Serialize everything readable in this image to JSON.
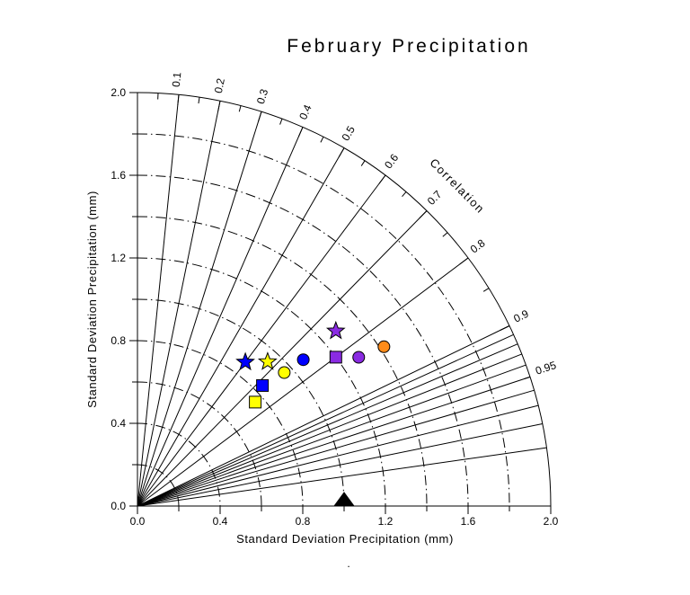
{
  "page": {
    "background": "#FFFFFF"
  },
  "chart_data": {
    "type": "taylor_diagram",
    "title": "February Precipitation",
    "xlabel": "Standard Deviation Precipitation (mm)",
    "ylabel": "Standard Deviation Precipitation (mm)",
    "arc_label": "Correlation",
    "line_color": "#000000",
    "axis_range": [
      0.0,
      2.0
    ],
    "axis_tick_step_minor": 0.2,
    "axis_tick_step_major": 0.4,
    "axis_tick_labels": [
      "0.0",
      "0.4",
      "0.8",
      "1.2",
      "1.6",
      "2.0"
    ],
    "std_dev_arcs": [
      0.2,
      0.4,
      0.6,
      0.8,
      1.0,
      1.2,
      1.4,
      1.6,
      1.8
    ],
    "outer_radius": 2.0,
    "correlation_rays": [
      0.1,
      0.2,
      0.3,
      0.4,
      0.5,
      0.6,
      0.7,
      0.8,
      0.9,
      0.91,
      0.92,
      0.93,
      0.94,
      0.95,
      0.96,
      0.97,
      0.98,
      0.99
    ],
    "correlation_arc_tick_step": 0.05,
    "correlation_labels": [
      {
        "value": 0.1,
        "label": "0.1"
      },
      {
        "value": 0.2,
        "label": "0.2"
      },
      {
        "value": 0.3,
        "label": "0.3"
      },
      {
        "value": 0.4,
        "label": "0.4"
      },
      {
        "value": 0.5,
        "label": "0.5"
      },
      {
        "value": 0.6,
        "label": "0.6"
      },
      {
        "value": 0.7,
        "label": "0.7"
      },
      {
        "value": 0.8,
        "label": "0.8"
      },
      {
        "value": 0.9,
        "label": "0.9"
      },
      {
        "value": 0.95,
        "label": "0.95"
      }
    ],
    "reference_marker": {
      "name": "reference-triangle",
      "shape": "triangle",
      "color": "#000000",
      "std_dev": 1.0,
      "correlation": 1.0
    },
    "points": [
      {
        "name": "blue-star",
        "shape": "star",
        "color": "#0000FF",
        "std_dev": 0.87,
        "correlation": 0.6
      },
      {
        "name": "yellow-star",
        "shape": "star",
        "color": "#FFFF00",
        "std_dev": 0.94,
        "correlation": 0.67
      },
      {
        "name": "blue-square",
        "shape": "square",
        "color": "#0000FF",
        "std_dev": 0.84,
        "correlation": 0.72
      },
      {
        "name": "yellow-square",
        "shape": "square",
        "color": "#FFFF00",
        "std_dev": 0.76,
        "correlation": 0.75
      },
      {
        "name": "yellow-circle",
        "shape": "circle",
        "color": "#FFFF00",
        "std_dev": 0.96,
        "correlation": 0.74
      },
      {
        "name": "blue-circle",
        "shape": "circle",
        "color": "#0000FF",
        "std_dev": 1.07,
        "correlation": 0.75
      },
      {
        "name": "purple-star",
        "shape": "star",
        "color": "#8A2BE2",
        "std_dev": 1.28,
        "correlation": 0.75
      },
      {
        "name": "purple-square",
        "shape": "square",
        "color": "#8A2BE2",
        "std_dev": 1.2,
        "correlation": 0.8
      },
      {
        "name": "purple-circle",
        "shape": "circle",
        "color": "#8A2BE2",
        "std_dev": 1.29,
        "correlation": 0.83
      },
      {
        "name": "orange-circle",
        "shape": "circle",
        "color": "#FF8C1A",
        "std_dev": 1.42,
        "correlation": 0.84
      }
    ],
    "stray_mark": "."
  }
}
